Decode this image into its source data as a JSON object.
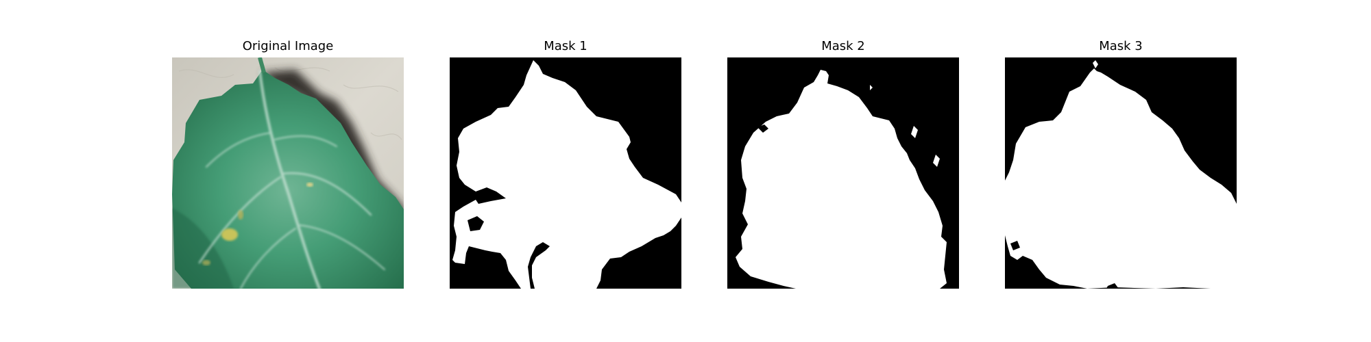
{
  "figure": {
    "panels": [
      {
        "title": "Original Image"
      },
      {
        "title": "Mask 1"
      },
      {
        "title": "Mask 2"
      },
      {
        "title": "Mask 3"
      }
    ]
  },
  "colors": {
    "background": "#ffffff",
    "mask_background": "#000000",
    "mask_foreground": "#ffffff",
    "leaf_green": "#3f9a72",
    "leaf_dark": "#2a7350",
    "surface_gray": "#d3d0c6",
    "shadow": "#2d2a27"
  }
}
